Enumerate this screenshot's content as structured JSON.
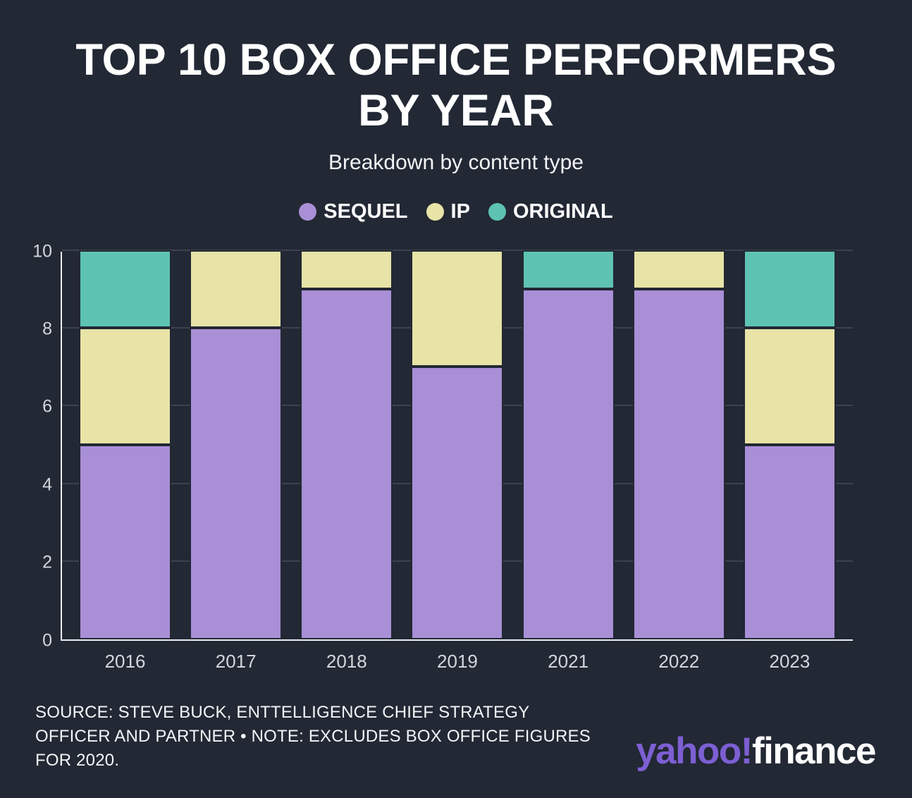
{
  "header": {
    "title_line1": "TOP 10 BOX OFFICE PERFORMERS",
    "title_line2": "BY YEAR",
    "subtitle": "Breakdown by content type"
  },
  "legend": [
    {
      "label": "SEQUEL",
      "color": "#a98fd6"
    },
    {
      "label": "IP",
      "color": "#e8e3a6"
    },
    {
      "label": "ORIGINAL",
      "color": "#5ec3b3"
    }
  ],
  "chart_data": {
    "type": "bar",
    "stacked": true,
    "categories": [
      "2016",
      "2017",
      "2018",
      "2019",
      "2021",
      "2022",
      "2023"
    ],
    "series": [
      {
        "name": "SEQUEL",
        "color": "#a98fd6",
        "values": [
          5,
          8,
          9,
          7,
          9,
          9,
          5
        ]
      },
      {
        "name": "IP",
        "color": "#e8e3a6",
        "values": [
          3,
          2,
          1,
          3,
          0,
          1,
          3
        ]
      },
      {
        "name": "ORIGINAL",
        "color": "#5ec3b3",
        "values": [
          2,
          0,
          0,
          0,
          1,
          0,
          2
        ]
      }
    ],
    "ylim": [
      0,
      10
    ],
    "yticks": [
      0,
      2,
      4,
      6,
      8,
      10
    ],
    "grid": true,
    "legend_position": "top",
    "title": "TOP 10 BOX OFFICE PERFORMERS BY YEAR",
    "subtitle": "Breakdown by content type",
    "xlabel": "",
    "ylabel": ""
  },
  "footer": {
    "source_text": "SOURCE: STEVE BUCK, ENTTELLIGENCE CHIEF STRATEGY OFFICER AND PARTNER • NOTE: EXCLUDES BOX OFFICE FIGURES FOR 2020.",
    "brand": {
      "part1": "yahoo!",
      "part2": "finance"
    }
  },
  "colors": {
    "background": "#222834",
    "axis": "#eceef1",
    "gridline": "#3c424e",
    "tick_text": "#d3d6db",
    "brand_purple": "#7d5fd3"
  }
}
